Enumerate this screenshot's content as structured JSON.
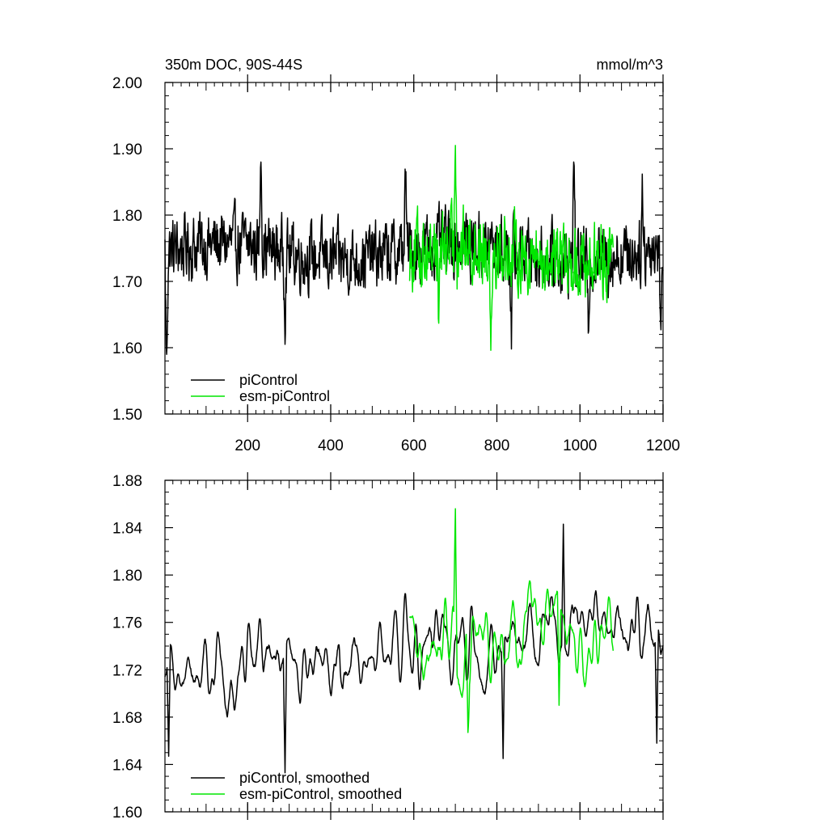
{
  "colors": {
    "piControl": "#000000",
    "esm_piControl": "#00e600"
  },
  "chart_data": [
    {
      "type": "line",
      "title": "350m DOC, 90S-44S",
      "units": "mmol/m^3",
      "xlim": [
        1,
        1200
      ],
      "ylim": [
        1.5,
        2.0
      ],
      "x_ticks": [
        200,
        400,
        600,
        800,
        1000,
        1200
      ],
      "x_tick_labels": [
        "200",
        "400",
        "600",
        "800",
        "1000",
        "1200"
      ],
      "y_ticks": [
        1.5,
        1.6,
        1.7,
        1.8,
        1.9,
        2.0
      ],
      "y_tick_labels": [
        "1.50",
        "1.60",
        "1.70",
        "1.80",
        "1.90",
        "2.00"
      ],
      "legend_position": "bottom-left",
      "series": [
        {
          "name": "piControl",
          "color_key": "piControl",
          "x_range": [
            1,
            1200
          ],
          "n": 1200,
          "mean": 1.745,
          "noise": 0.042,
          "anchors": [
            [
              5,
              1.59
            ],
            [
              232,
              1.88
            ],
            [
              290,
              1.605
            ],
            [
              580,
              1.852
            ],
            [
              835,
              1.598
            ],
            [
              985,
              1.88
            ],
            [
              1020,
              1.622
            ],
            [
              1150,
              1.862
            ],
            [
              1195,
              1.627
            ]
          ]
        },
        {
          "name": "esm-piControl",
          "color_key": "esm_piControl",
          "x_range": [
            590,
            1080
          ],
          "n": 490,
          "mean": 1.742,
          "noise": 0.046,
          "anchors": [
            [
              700,
              1.905
            ],
            [
              785,
              1.596
            ],
            [
              660,
              1.637
            ]
          ]
        }
      ]
    },
    {
      "type": "line",
      "xlim": [
        1,
        1200
      ],
      "ylim": [
        1.6,
        1.88
      ],
      "x_ticks": [
        200,
        400,
        600,
        800,
        1000,
        1200
      ],
      "y_ticks": [
        1.6,
        1.64,
        1.68,
        1.72,
        1.76,
        1.8,
        1.84,
        1.88
      ],
      "y_tick_labels": [
        "1.60",
        "1.64",
        "1.68",
        "1.72",
        "1.76",
        "1.80",
        "1.84",
        "1.88"
      ],
      "legend_position": "bottom-left",
      "series": [
        {
          "name": "piControl, smoothed",
          "color_key": "piControl",
          "x_range": [
            1,
            1200
          ],
          "n": 1200,
          "mean": 1.735,
          "amp": 0.05,
          "anchors": [
            [
              10,
              1.647
            ],
            [
              290,
              1.633
            ],
            [
              815,
              1.645
            ],
            [
              960,
              1.843
            ],
            [
              1185,
              1.658
            ]
          ]
        },
        {
          "name": "esm-piControl, smoothed",
          "color_key": "esm_piControl",
          "x_range": [
            590,
            1080
          ],
          "n": 490,
          "mean": 1.742,
          "amp": 0.05,
          "anchors": [
            [
              700,
              1.856
            ],
            [
              730,
              1.667
            ],
            [
              950,
              1.69
            ]
          ]
        }
      ]
    }
  ]
}
